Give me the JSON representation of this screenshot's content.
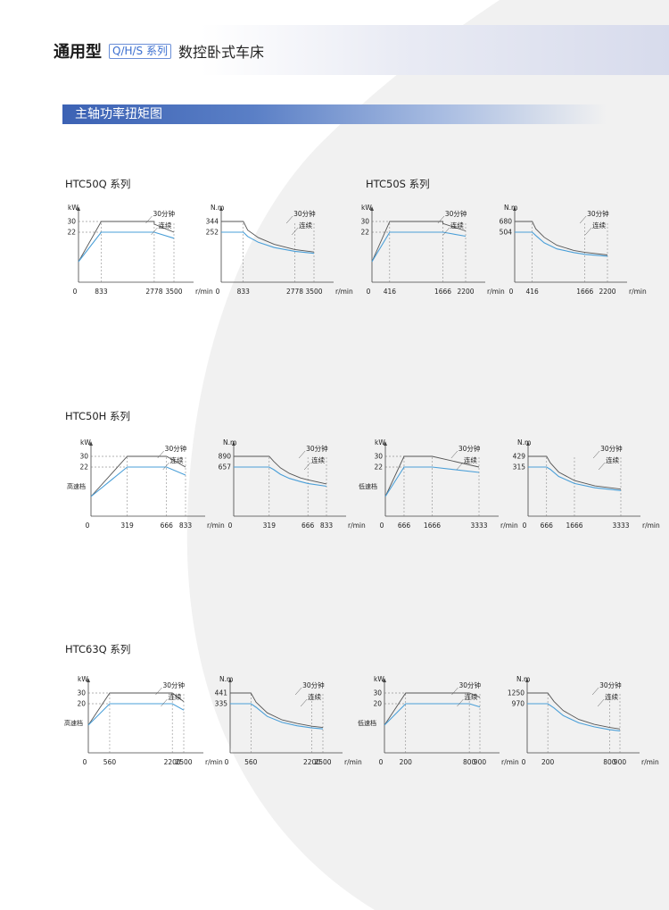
{
  "header": {
    "title": "通用型",
    "tag": "Q/H/S 系列",
    "subtitle": "数控卧式车床"
  },
  "section": {
    "title": "主轴功率扭矩图"
  },
  "groups": [
    {
      "title": "HTC50Q 系列"
    },
    {
      "title": "HTC50S 系列"
    },
    {
      "title": "HTC50H 系列"
    },
    {
      "title": "HTC63Q 系列"
    }
  ],
  "colors": {
    "continuous": "#4a9fd8",
    "thirty_min": "#555555",
    "band_blue": "#3c62b4",
    "tag_blue": "#3b6fd0"
  },
  "chart_data": [
    {
      "type": "line",
      "group": "HTC50Q 系列",
      "quantity": "power",
      "ylabel": "kW",
      "xunit": "r/min",
      "x_ticks": [
        0,
        833,
        2778,
        3500
      ],
      "y_ticks": [
        30,
        22
      ],
      "series": [
        {
          "name": "30分钟",
          "points": [
            [
              0,
              0
            ],
            [
              833,
              30
            ],
            [
              2778,
              30
            ],
            [
              2778,
              28
            ],
            [
              3500,
              22
            ]
          ]
        },
        {
          "name": "连续",
          "points": [
            [
              0,
              0
            ],
            [
              833,
              22
            ],
            [
              2778,
              22
            ],
            [
              3500,
              17.5
            ]
          ]
        }
      ]
    },
    {
      "type": "line",
      "group": "HTC50Q 系列",
      "quantity": "torque",
      "ylabel": "N.m",
      "xunit": "r/min",
      "x_ticks": [
        0,
        833,
        2778,
        3500
      ],
      "y_ticks": [
        344,
        252
      ],
      "series": [
        {
          "name": "30分钟",
          "points": [
            [
              0,
              344
            ],
            [
              833,
              344
            ],
            [
              1000,
              270
            ],
            [
              1400,
              205
            ],
            [
              2000,
              148
            ],
            [
              2778,
              103
            ],
            [
              3500,
              82
            ]
          ]
        },
        {
          "name": "连续",
          "points": [
            [
              0,
              252
            ],
            [
              833,
              252
            ],
            [
              1000,
              215
            ],
            [
              1400,
              165
            ],
            [
              2000,
              120
            ],
            [
              2778,
              88
            ],
            [
              3500,
              70
            ]
          ]
        }
      ]
    },
    {
      "type": "line",
      "group": "HTC50S 系列",
      "quantity": "power",
      "ylabel": "kW",
      "xunit": "r/min",
      "x_ticks": [
        0,
        416,
        1666,
        2200
      ],
      "y_ticks": [
        30,
        22
      ],
      "series": [
        {
          "name": "30分钟",
          "points": [
            [
              0,
              0
            ],
            [
              416,
              30
            ],
            [
              1666,
              30
            ],
            [
              1666,
              28.5
            ],
            [
              2200,
              23
            ]
          ]
        },
        {
          "name": "连续",
          "points": [
            [
              0,
              0
            ],
            [
              416,
              22
            ],
            [
              1666,
              22
            ],
            [
              2200,
              19
            ]
          ]
        }
      ]
    },
    {
      "type": "line",
      "group": "HTC50S 系列",
      "quantity": "torque",
      "ylabel": "N.m",
      "xunit": "r/min",
      "x_ticks": [
        0,
        416,
        1666,
        2200
      ],
      "y_ticks": [
        680,
        504
      ],
      "series": [
        {
          "name": "30分钟",
          "points": [
            [
              0,
              680
            ],
            [
              416,
              680
            ],
            [
              500,
              560
            ],
            [
              700,
              420
            ],
            [
              1000,
              290
            ],
            [
              1400,
              205
            ],
            [
              1666,
              172
            ],
            [
              2200,
              130
            ]
          ]
        },
        {
          "name": "连续",
          "points": [
            [
              0,
              504
            ],
            [
              416,
              504
            ],
            [
              500,
              450
            ],
            [
              700,
              330
            ],
            [
              1000,
              230
            ],
            [
              1400,
              170
            ],
            [
              1666,
              140
            ],
            [
              2200,
              110
            ]
          ]
        }
      ]
    },
    {
      "type": "line",
      "group": "HTC50H 系列",
      "quantity": "power",
      "ylabel": "kW",
      "xunit": "r/min",
      "gear": "高速档",
      "x_ticks": [
        0,
        319,
        666,
        833
      ],
      "y_ticks": [
        30,
        22
      ],
      "series": [
        {
          "name": "30分钟",
          "points": [
            [
              0,
              0
            ],
            [
              319,
              30
            ],
            [
              666,
              30
            ],
            [
              833,
              22
            ]
          ]
        },
        {
          "name": "连续",
          "points": [
            [
              0,
              0
            ],
            [
              319,
              22
            ],
            [
              666,
              22
            ],
            [
              833,
              16
            ]
          ]
        }
      ]
    },
    {
      "type": "line",
      "group": "HTC50H 系列",
      "quantity": "torque",
      "ylabel": "N.m",
      "xunit": "r/min",
      "x_ticks": [
        0,
        319,
        666,
        833
      ],
      "y_ticks": [
        890,
        657
      ],
      "series": [
        {
          "name": "30分钟",
          "points": [
            [
              0,
              890
            ],
            [
              319,
              890
            ],
            [
              360,
              780
            ],
            [
              420,
              640
            ],
            [
              500,
              520
            ],
            [
              600,
              420
            ],
            [
              666,
              380
            ],
            [
              833,
              290
            ]
          ]
        },
        {
          "name": "连续",
          "points": [
            [
              0,
              657
            ],
            [
              319,
              657
            ],
            [
              360,
              600
            ],
            [
              420,
              500
            ],
            [
              500,
              410
            ],
            [
              600,
              340
            ],
            [
              666,
              300
            ],
            [
              833,
              240
            ]
          ]
        }
      ]
    },
    {
      "type": "line",
      "group": "HTC50H 系列",
      "quantity": "power",
      "ylabel": "kW",
      "xunit": "r/min",
      "gear": "低速档",
      "x_ticks": [
        0,
        666,
        1666,
        3333
      ],
      "y_ticks": [
        30,
        22
      ],
      "series": [
        {
          "name": "30分钟",
          "points": [
            [
              0,
              0
            ],
            [
              666,
              30
            ],
            [
              1666,
              30
            ],
            [
              3333,
              22
            ]
          ]
        },
        {
          "name": "连续",
          "points": [
            [
              0,
              0
            ],
            [
              666,
              22
            ],
            [
              1666,
              22
            ],
            [
              3333,
              18
            ]
          ]
        }
      ]
    },
    {
      "type": "line",
      "group": "HTC50H 系列",
      "quantity": "torque",
      "ylabel": "N.m",
      "xunit": "r/min",
      "x_ticks": [
        0,
        666,
        1666,
        3333
      ],
      "y_ticks": [
        429,
        315
      ],
      "series": [
        {
          "name": "30分钟",
          "points": [
            [
              0,
              429
            ],
            [
              666,
              429
            ],
            [
              800,
              360
            ],
            [
              1100,
              262
            ],
            [
              1666,
              172
            ],
            [
              2400,
              115
            ],
            [
              3333,
              80
            ]
          ]
        },
        {
          "name": "连续",
          "points": [
            [
              0,
              315
            ],
            [
              666,
              315
            ],
            [
              800,
              290
            ],
            [
              1100,
              215
            ],
            [
              1666,
              140
            ],
            [
              2400,
              95
            ],
            [
              3333,
              65
            ]
          ]
        }
      ]
    },
    {
      "type": "line",
      "group": "HTC63Q 系列",
      "quantity": "power",
      "ylabel": "kW",
      "xunit": "r/min",
      "gear": "高速档",
      "x_ticks": [
        0,
        560,
        2200,
        2500
      ],
      "y_ticks": [
        30,
        20
      ],
      "series": [
        {
          "name": "30分钟",
          "points": [
            [
              0,
              0
            ],
            [
              560,
              30
            ],
            [
              2200,
              30
            ],
            [
              2500,
              22
            ]
          ]
        },
        {
          "name": "连续",
          "points": [
            [
              0,
              0
            ],
            [
              560,
              20
            ],
            [
              2200,
              20
            ],
            [
              2500,
              14
            ]
          ]
        }
      ]
    },
    {
      "type": "line",
      "group": "HTC63Q 系列",
      "quantity": "torque",
      "ylabel": "N.m",
      "xunit": "r/min",
      "x_ticks": [
        0,
        560,
        2200,
        2500
      ],
      "y_ticks": [
        441,
        335
      ],
      "series": [
        {
          "name": "30分钟",
          "points": [
            [
              0,
              441
            ],
            [
              560,
              441
            ],
            [
              700,
              350
            ],
            [
              1000,
              245
            ],
            [
              1400,
              175
            ],
            [
              1800,
              140
            ],
            [
              2200,
              112
            ],
            [
              2500,
              100
            ]
          ]
        },
        {
          "name": "连续",
          "points": [
            [
              0,
              335
            ],
            [
              560,
              335
            ],
            [
              700,
              300
            ],
            [
              1000,
              210
            ],
            [
              1400,
              150
            ],
            [
              1800,
              117
            ],
            [
              2200,
              96
            ],
            [
              2500,
              86
            ]
          ]
        }
      ]
    },
    {
      "type": "line",
      "group": "HTC63Q 系列",
      "quantity": "power",
      "ylabel": "kW",
      "xunit": "r/min",
      "gear": "低速档",
      "x_ticks": [
        0,
        200,
        800,
        900
      ],
      "y_ticks": [
        30,
        20
      ],
      "series": [
        {
          "name": "30分钟",
          "points": [
            [
              0,
              0
            ],
            [
              200,
              30
            ],
            [
              800,
              30
            ],
            [
              900,
              26
            ]
          ]
        },
        {
          "name": "连续",
          "points": [
            [
              0,
              0
            ],
            [
              200,
              20
            ],
            [
              800,
              20
            ],
            [
              900,
              17
            ]
          ]
        }
      ]
    },
    {
      "type": "line",
      "group": "HTC63Q 系列",
      "quantity": "torque",
      "ylabel": "N.m",
      "xunit": "r/min",
      "x_ticks": [
        0,
        200,
        800,
        900
      ],
      "y_ticks": [
        1250,
        970
      ],
      "series": [
        {
          "name": "30分钟",
          "points": [
            [
              0,
              1250
            ],
            [
              200,
              1250
            ],
            [
              260,
              1030
            ],
            [
              350,
              790
            ],
            [
              500,
              560
            ],
            [
              650,
              430
            ],
            [
              800,
              350
            ],
            [
              900,
              310
            ]
          ]
        },
        {
          "name": "连续",
          "points": [
            [
              0,
              970
            ],
            [
              200,
              970
            ],
            [
              260,
              860
            ],
            [
              350,
              660
            ],
            [
              500,
              470
            ],
            [
              650,
              365
            ],
            [
              800,
              290
            ],
            [
              900,
              260
            ]
          ]
        }
      ]
    }
  ]
}
